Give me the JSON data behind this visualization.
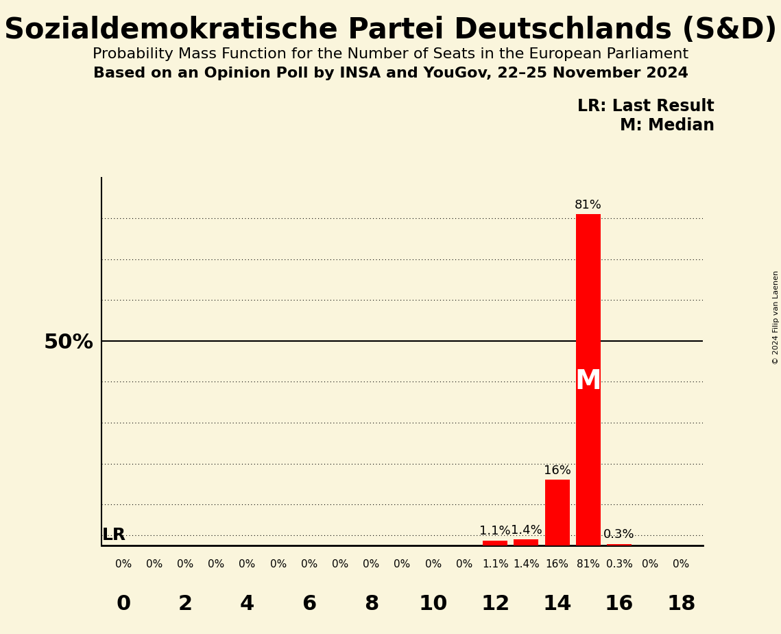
{
  "title": "Sozialdemokratische Partei Deutschlands (S&D)",
  "subtitle1": "Probability Mass Function for the Number of Seats in the European Parliament",
  "subtitle2": "Based on an Opinion Poll by INSA and YouGov, 22–25 November 2024",
  "copyright": "© 2024 Filip van Laenen",
  "seats": [
    0,
    1,
    2,
    3,
    4,
    5,
    6,
    7,
    8,
    9,
    10,
    11,
    12,
    13,
    14,
    15,
    16,
    17,
    18
  ],
  "probabilities": [
    0,
    0,
    0,
    0,
    0,
    0,
    0,
    0,
    0,
    0,
    0,
    0,
    1.1,
    1.4,
    16,
    81,
    0.3,
    0,
    0
  ],
  "bar_color": "#ff0000",
  "background_color": "#faf5dc",
  "last_result_seat": 15,
  "last_result_y": 2.5,
  "median_seat": 15,
  "median_value": 40,
  "ylim": [
    0,
    90
  ],
  "lr_label": "LR",
  "lr_legend": "LR: Last Result",
  "m_legend": "M: Median",
  "xlabel_ticks": [
    0,
    2,
    4,
    6,
    8,
    10,
    12,
    14,
    16,
    18
  ],
  "grid_y_values": [
    10,
    20,
    30,
    40,
    50,
    60,
    70,
    80
  ],
  "lr_y_value": 2.5
}
